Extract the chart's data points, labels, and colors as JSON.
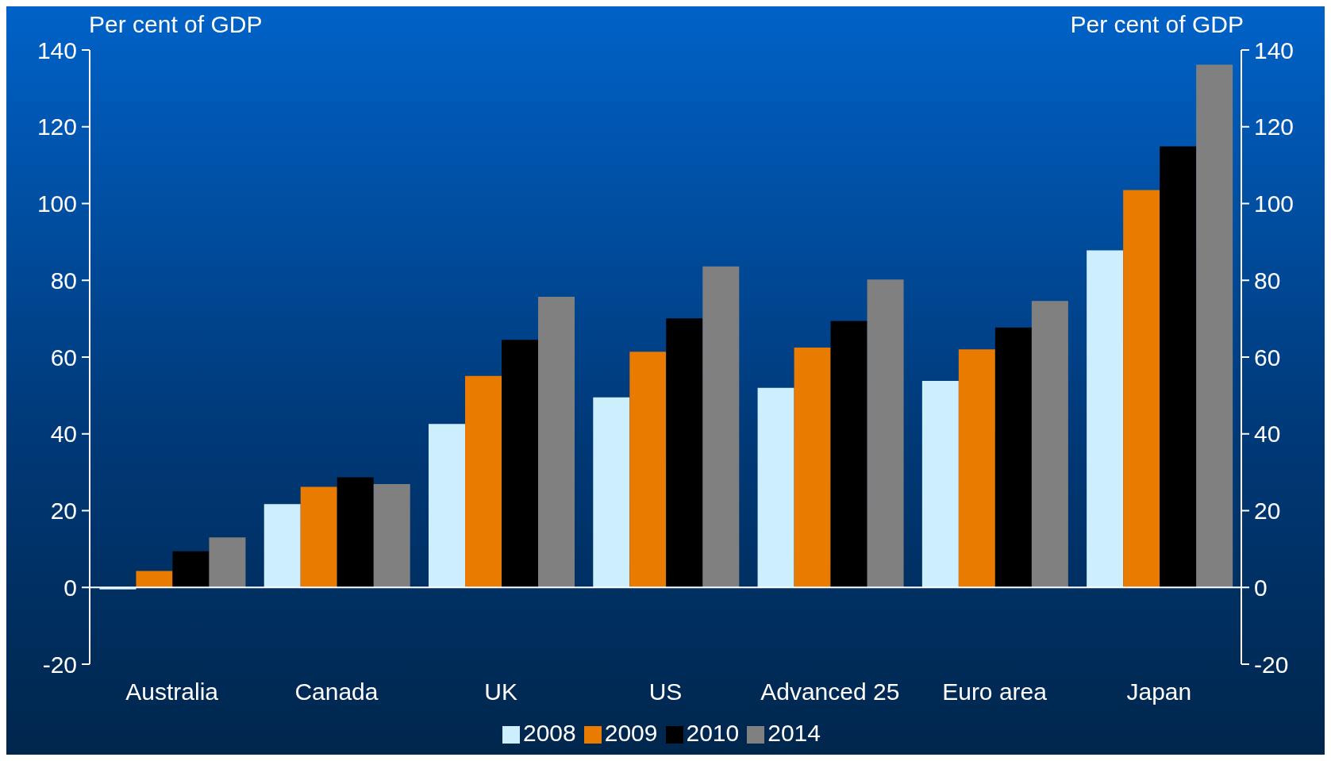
{
  "chart_data": {
    "type": "bar",
    "ylabel": "Per cent of GDP",
    "y2label": "Per cent of GDP",
    "categories": [
      "Australia",
      "Canada",
      "UK",
      "US",
      "Advanced 25",
      "Euro area",
      "Japan"
    ],
    "series": [
      {
        "name": "2008",
        "color": "#cdeefd",
        "values": [
          -0.5,
          21.7,
          42.6,
          49.5,
          52,
          53.8,
          87.8
        ]
      },
      {
        "name": "2009",
        "color": "#e87b00",
        "values": [
          4.3,
          26.2,
          55.1,
          61.4,
          62.5,
          62,
          103.5
        ]
      },
      {
        "name": "2010",
        "color": "#000000",
        "values": [
          9.4,
          28.7,
          64.5,
          70.1,
          69.4,
          67.7,
          114.9
        ]
      },
      {
        "name": "2014",
        "color": "#808080",
        "values": [
          13,
          26.9,
          75.7,
          83.6,
          80.2,
          74.6,
          136.2
        ]
      }
    ],
    "ylim": [
      -20,
      140
    ],
    "yticks": [
      -20,
      0,
      20,
      40,
      60,
      80,
      100,
      120,
      140
    ],
    "y2lim": [
      -20,
      140
    ],
    "y2ticks": [
      -20,
      0,
      20,
      40,
      60,
      80,
      100,
      120,
      140
    ],
    "legend": "bottom"
  }
}
